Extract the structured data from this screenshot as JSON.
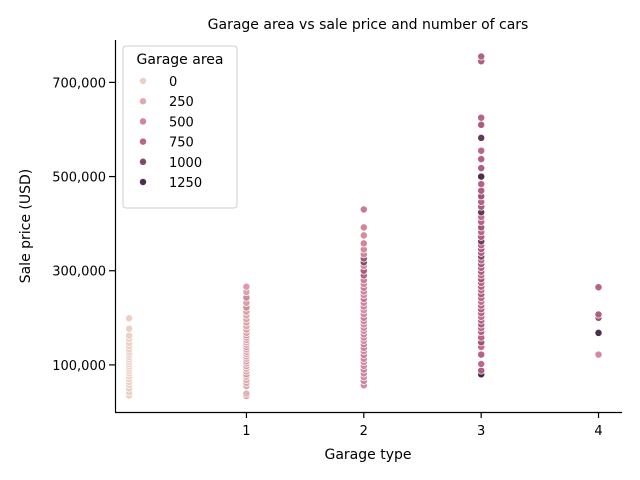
{
  "chart_data": {
    "type": "scatter",
    "title": "Garage area vs sale price and number of cars",
    "xlabel": "Garage type",
    "ylabel": "Sale price (USD)",
    "xlim": [
      -0.12,
      4.2
    ],
    "ylim": [
      0,
      790000
    ],
    "x_ticks": [
      1,
      2,
      3,
      4
    ],
    "x_tick_labels": [
      "1",
      "2",
      "3",
      "4"
    ],
    "y_ticks": [
      100000,
      300000,
      500000,
      700000
    ],
    "y_tick_labels": [
      "100,000",
      "300,000",
      "500,000",
      "700,000"
    ],
    "grid": false,
    "legend": {
      "title": "Garage area",
      "placement": "top-left",
      "entries": [
        {
          "label": "0",
          "value": 0
        },
        {
          "label": "250",
          "value": 250
        },
        {
          "label": "500",
          "value": 500
        },
        {
          "label": "750",
          "value": 750
        },
        {
          "label": "1000",
          "value": 1000
        },
        {
          "label": "1250",
          "value": 1250
        }
      ]
    },
    "hue_scale": {
      "min": 0,
      "max": 1400,
      "low_color": "#ecd0c2",
      "mid_color": "#c46a8d",
      "high_color": "#2d1e3e"
    },
    "points": [
      {
        "x": 0,
        "y": 35000,
        "area": 0
      },
      {
        "x": 0,
        "y": 42000,
        "area": 0
      },
      {
        "x": 0,
        "y": 50000,
        "area": 0
      },
      {
        "x": 0,
        "y": 58000,
        "area": 0
      },
      {
        "x": 0,
        "y": 64000,
        "area": 0
      },
      {
        "x": 0,
        "y": 70000,
        "area": 0
      },
      {
        "x": 0,
        "y": 76000,
        "area": 0
      },
      {
        "x": 0,
        "y": 82000,
        "area": 0
      },
      {
        "x": 0,
        "y": 87000,
        "area": 0
      },
      {
        "x": 0,
        "y": 92000,
        "area": 0
      },
      {
        "x": 0,
        "y": 97000,
        "area": 0
      },
      {
        "x": 0,
        "y": 102000,
        "area": 0
      },
      {
        "x": 0,
        "y": 107000,
        "area": 0
      },
      {
        "x": 0,
        "y": 112000,
        "area": 0
      },
      {
        "x": 0,
        "y": 117000,
        "area": 0
      },
      {
        "x": 0,
        "y": 122000,
        "area": 0
      },
      {
        "x": 0,
        "y": 127000,
        "area": 0
      },
      {
        "x": 0,
        "y": 133000,
        "area": 0
      },
      {
        "x": 0,
        "y": 140000,
        "area": 0
      },
      {
        "x": 0,
        "y": 147000,
        "area": 0
      },
      {
        "x": 0,
        "y": 155000,
        "area": 0
      },
      {
        "x": 0,
        "y": 162000,
        "area": 0
      },
      {
        "x": 0,
        "y": 177000,
        "area": 0
      },
      {
        "x": 0,
        "y": 199000,
        "area": 0
      },
      {
        "x": 1,
        "y": 34000,
        "area": 300
      },
      {
        "x": 1,
        "y": 39000,
        "area": 200
      },
      {
        "x": 1,
        "y": 55000,
        "area": 250
      },
      {
        "x": 1,
        "y": 62000,
        "area": 300
      },
      {
        "x": 1,
        "y": 68000,
        "area": 260
      },
      {
        "x": 1,
        "y": 75000,
        "area": 220
      },
      {
        "x": 1,
        "y": 80000,
        "area": 400
      },
      {
        "x": 1,
        "y": 86000,
        "area": 280
      },
      {
        "x": 1,
        "y": 92000,
        "area": 240
      },
      {
        "x": 1,
        "y": 97000,
        "area": 300
      },
      {
        "x": 1,
        "y": 103000,
        "area": 270
      },
      {
        "x": 1,
        "y": 108000,
        "area": 420
      },
      {
        "x": 1,
        "y": 113000,
        "area": 260
      },
      {
        "x": 1,
        "y": 118000,
        "area": 300
      },
      {
        "x": 1,
        "y": 123000,
        "area": 250
      },
      {
        "x": 1,
        "y": 128000,
        "area": 310
      },
      {
        "x": 1,
        "y": 133000,
        "area": 280
      },
      {
        "x": 1,
        "y": 138000,
        "area": 430
      },
      {
        "x": 1,
        "y": 143000,
        "area": 300
      },
      {
        "x": 1,
        "y": 148000,
        "area": 270
      },
      {
        "x": 1,
        "y": 153000,
        "area": 350
      },
      {
        "x": 1,
        "y": 158000,
        "area": 300
      },
      {
        "x": 1,
        "y": 163000,
        "area": 450
      },
      {
        "x": 1,
        "y": 168000,
        "area": 280
      },
      {
        "x": 1,
        "y": 175000,
        "area": 300
      },
      {
        "x": 1,
        "y": 182000,
        "area": 260
      },
      {
        "x": 1,
        "y": 190000,
        "area": 330
      },
      {
        "x": 1,
        "y": 197000,
        "area": 300
      },
      {
        "x": 1,
        "y": 205000,
        "area": 280
      },
      {
        "x": 1,
        "y": 213000,
        "area": 300
      },
      {
        "x": 1,
        "y": 222000,
        "area": 460
      },
      {
        "x": 1,
        "y": 232000,
        "area": 320
      },
      {
        "x": 1,
        "y": 243000,
        "area": 480
      },
      {
        "x": 1,
        "y": 255000,
        "area": 300
      },
      {
        "x": 1,
        "y": 266000,
        "area": 350
      },
      {
        "x": 2,
        "y": 57000,
        "area": 480
      },
      {
        "x": 2,
        "y": 66000,
        "area": 520
      },
      {
        "x": 2,
        "y": 74000,
        "area": 460
      },
      {
        "x": 2,
        "y": 82000,
        "area": 500
      },
      {
        "x": 2,
        "y": 90000,
        "area": 540
      },
      {
        "x": 2,
        "y": 98000,
        "area": 480
      },
      {
        "x": 2,
        "y": 106000,
        "area": 460
      },
      {
        "x": 2,
        "y": 113000,
        "area": 500
      },
      {
        "x": 2,
        "y": 121000,
        "area": 560
      },
      {
        "x": 2,
        "y": 129000,
        "area": 480
      },
      {
        "x": 2,
        "y": 136000,
        "area": 520
      },
      {
        "x": 2,
        "y": 144000,
        "area": 600
      },
      {
        "x": 2,
        "y": 151000,
        "area": 470
      },
      {
        "x": 2,
        "y": 158000,
        "area": 500
      },
      {
        "x": 2,
        "y": 165000,
        "area": 540
      },
      {
        "x": 2,
        "y": 172000,
        "area": 460
      },
      {
        "x": 2,
        "y": 179000,
        "area": 500
      },
      {
        "x": 2,
        "y": 186000,
        "area": 480
      },
      {
        "x": 2,
        "y": 193000,
        "area": 520
      },
      {
        "x": 2,
        "y": 200000,
        "area": 560
      },
      {
        "x": 2,
        "y": 208000,
        "area": 500
      },
      {
        "x": 2,
        "y": 216000,
        "area": 470
      },
      {
        "x": 2,
        "y": 224000,
        "area": 540
      },
      {
        "x": 2,
        "y": 232000,
        "area": 500
      },
      {
        "x": 2,
        "y": 240000,
        "area": 620
      },
      {
        "x": 2,
        "y": 248000,
        "area": 480
      },
      {
        "x": 2,
        "y": 256000,
        "area": 520
      },
      {
        "x": 2,
        "y": 264000,
        "area": 560
      },
      {
        "x": 2,
        "y": 272000,
        "area": 500
      },
      {
        "x": 2,
        "y": 280000,
        "area": 540
      },
      {
        "x": 2,
        "y": 290000,
        "area": 760
      },
      {
        "x": 2,
        "y": 300000,
        "area": 820
      },
      {
        "x": 2,
        "y": 310000,
        "area": 480
      },
      {
        "x": 2,
        "y": 318000,
        "area": 1000
      },
      {
        "x": 2,
        "y": 326000,
        "area": 900
      },
      {
        "x": 2,
        "y": 335000,
        "area": 520
      },
      {
        "x": 2,
        "y": 345000,
        "area": 480
      },
      {
        "x": 2,
        "y": 358000,
        "area": 500
      },
      {
        "x": 2,
        "y": 375000,
        "area": 460
      },
      {
        "x": 2,
        "y": 392000,
        "area": 500
      },
      {
        "x": 2,
        "y": 430000,
        "area": 580
      },
      {
        "x": 3,
        "y": 80000,
        "area": 1300
      },
      {
        "x": 3,
        "y": 88000,
        "area": 800
      },
      {
        "x": 3,
        "y": 102000,
        "area": 720
      },
      {
        "x": 3,
        "y": 122000,
        "area": 760
      },
      {
        "x": 3,
        "y": 138000,
        "area": 700
      },
      {
        "x": 3,
        "y": 148000,
        "area": 900
      },
      {
        "x": 3,
        "y": 158000,
        "area": 740
      },
      {
        "x": 3,
        "y": 170000,
        "area": 780
      },
      {
        "x": 3,
        "y": 178000,
        "area": 700
      },
      {
        "x": 3,
        "y": 186000,
        "area": 820
      },
      {
        "x": 3,
        "y": 194000,
        "area": 760
      },
      {
        "x": 3,
        "y": 202000,
        "area": 680
      },
      {
        "x": 3,
        "y": 210000,
        "area": 740
      },
      {
        "x": 3,
        "y": 218000,
        "area": 800
      },
      {
        "x": 3,
        "y": 226000,
        "area": 720
      },
      {
        "x": 3,
        "y": 234000,
        "area": 660
      },
      {
        "x": 3,
        "y": 242000,
        "area": 760
      },
      {
        "x": 3,
        "y": 250000,
        "area": 840
      },
      {
        "x": 3,
        "y": 258000,
        "area": 700
      },
      {
        "x": 3,
        "y": 266000,
        "area": 780
      },
      {
        "x": 3,
        "y": 274000,
        "area": 740
      },
      {
        "x": 3,
        "y": 282000,
        "area": 900
      },
      {
        "x": 3,
        "y": 290000,
        "area": 720
      },
      {
        "x": 3,
        "y": 298000,
        "area": 800
      },
      {
        "x": 3,
        "y": 306000,
        "area": 760
      },
      {
        "x": 3,
        "y": 314000,
        "area": 860
      },
      {
        "x": 3,
        "y": 322000,
        "area": 740
      },
      {
        "x": 3,
        "y": 330000,
        "area": 1000
      },
      {
        "x": 3,
        "y": 338000,
        "area": 780
      },
      {
        "x": 3,
        "y": 346000,
        "area": 820
      },
      {
        "x": 3,
        "y": 354000,
        "area": 760
      },
      {
        "x": 3,
        "y": 362000,
        "area": 1100
      },
      {
        "x": 3,
        "y": 372000,
        "area": 800
      },
      {
        "x": 3,
        "y": 382000,
        "area": 740
      },
      {
        "x": 3,
        "y": 392000,
        "area": 860
      },
      {
        "x": 3,
        "y": 404000,
        "area": 780
      },
      {
        "x": 3,
        "y": 414000,
        "area": 700
      },
      {
        "x": 3,
        "y": 424000,
        "area": 1150
      },
      {
        "x": 3,
        "y": 436000,
        "area": 820
      },
      {
        "x": 3,
        "y": 446000,
        "area": 760
      },
      {
        "x": 3,
        "y": 458000,
        "area": 880
      },
      {
        "x": 3,
        "y": 470000,
        "area": 800
      },
      {
        "x": 3,
        "y": 484000,
        "area": 760
      },
      {
        "x": 3,
        "y": 500000,
        "area": 1250
      },
      {
        "x": 3,
        "y": 518000,
        "area": 800
      },
      {
        "x": 3,
        "y": 537000,
        "area": 780
      },
      {
        "x": 3,
        "y": 555000,
        "area": 740
      },
      {
        "x": 3,
        "y": 582000,
        "area": 1150
      },
      {
        "x": 3,
        "y": 610000,
        "area": 820
      },
      {
        "x": 3,
        "y": 625000,
        "area": 760
      },
      {
        "x": 3,
        "y": 745000,
        "area": 800
      },
      {
        "x": 3,
        "y": 755000,
        "area": 780
      },
      {
        "x": 4,
        "y": 122000,
        "area": 480
      },
      {
        "x": 4,
        "y": 168000,
        "area": 1250
      },
      {
        "x": 4,
        "y": 200000,
        "area": 900
      },
      {
        "x": 4,
        "y": 207000,
        "area": 800
      },
      {
        "x": 4,
        "y": 265000,
        "area": 760
      }
    ]
  }
}
